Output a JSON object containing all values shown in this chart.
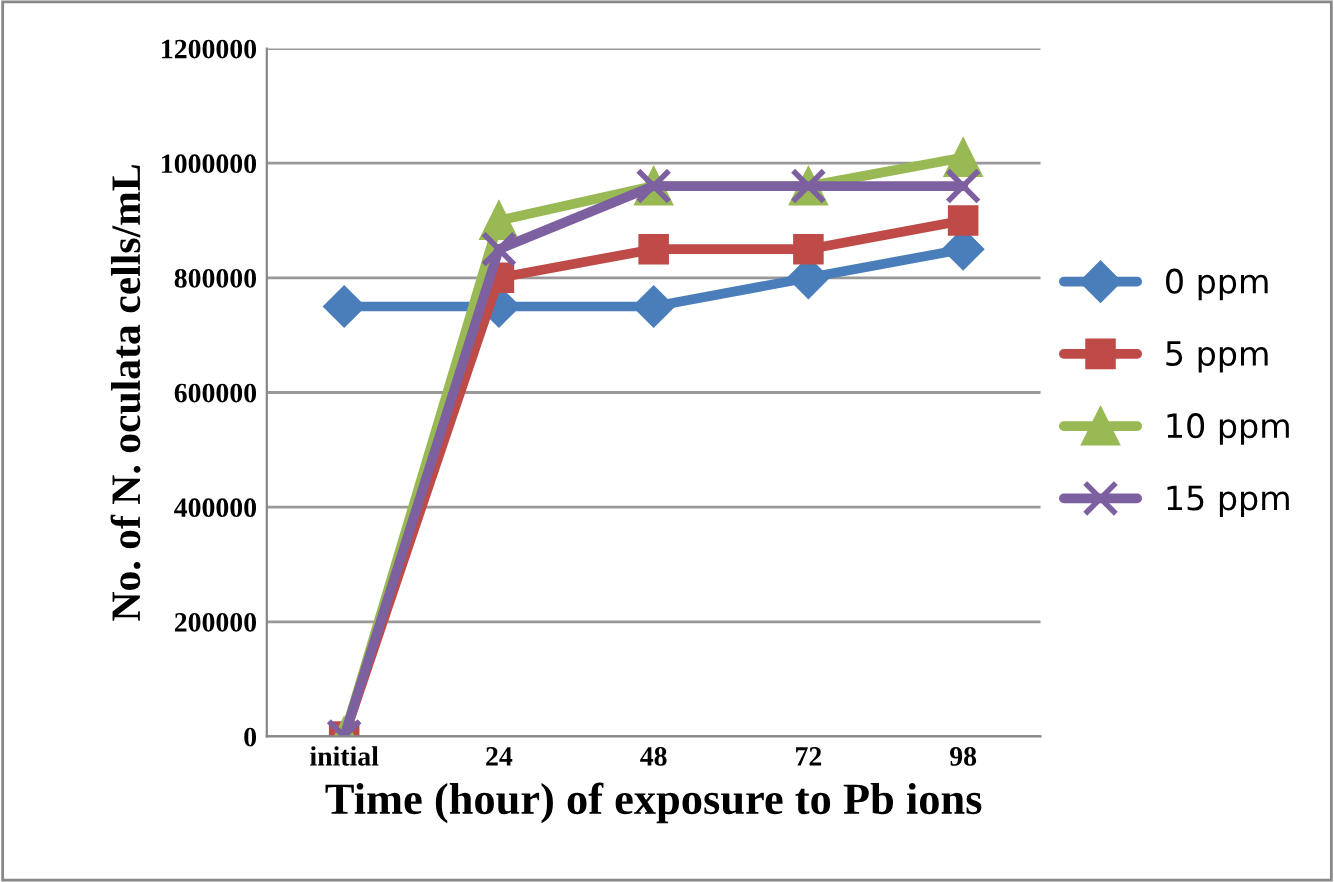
{
  "chart_data": {
    "type": "line",
    "xlabel": "Time (hour) of exposure to Pb ions",
    "ylabel": "No. of N. oculata cells/mL",
    "categories": [
      "initial",
      "24",
      "48",
      "72",
      "98"
    ],
    "series": [
      {
        "name": "0 ppm",
        "color": "#4a7ebb",
        "marker": "diamond",
        "values": [
          750000,
          750000,
          750000,
          800000,
          850000
        ]
      },
      {
        "name": "5 ppm",
        "color": "#be4b48",
        "marker": "square",
        "values": [
          0,
          800000,
          850000,
          850000,
          900000
        ]
      },
      {
        "name": "10 ppm",
        "color": "#98b954",
        "marker": "triangle",
        "values": [
          0,
          900000,
          960000,
          960000,
          1010000
        ]
      },
      {
        "name": "15 ppm",
        "color": "#7d60a0",
        "marker": "cross",
        "values": [
          0,
          850000,
          960000,
          960000,
          960000
        ]
      }
    ],
    "ylim": [
      0,
      1200000
    ],
    "yticks": [
      0,
      200000,
      400000,
      600000,
      800000,
      1000000,
      1200000
    ],
    "grid": "y",
    "legend": "right",
    "line_style": "solid"
  }
}
